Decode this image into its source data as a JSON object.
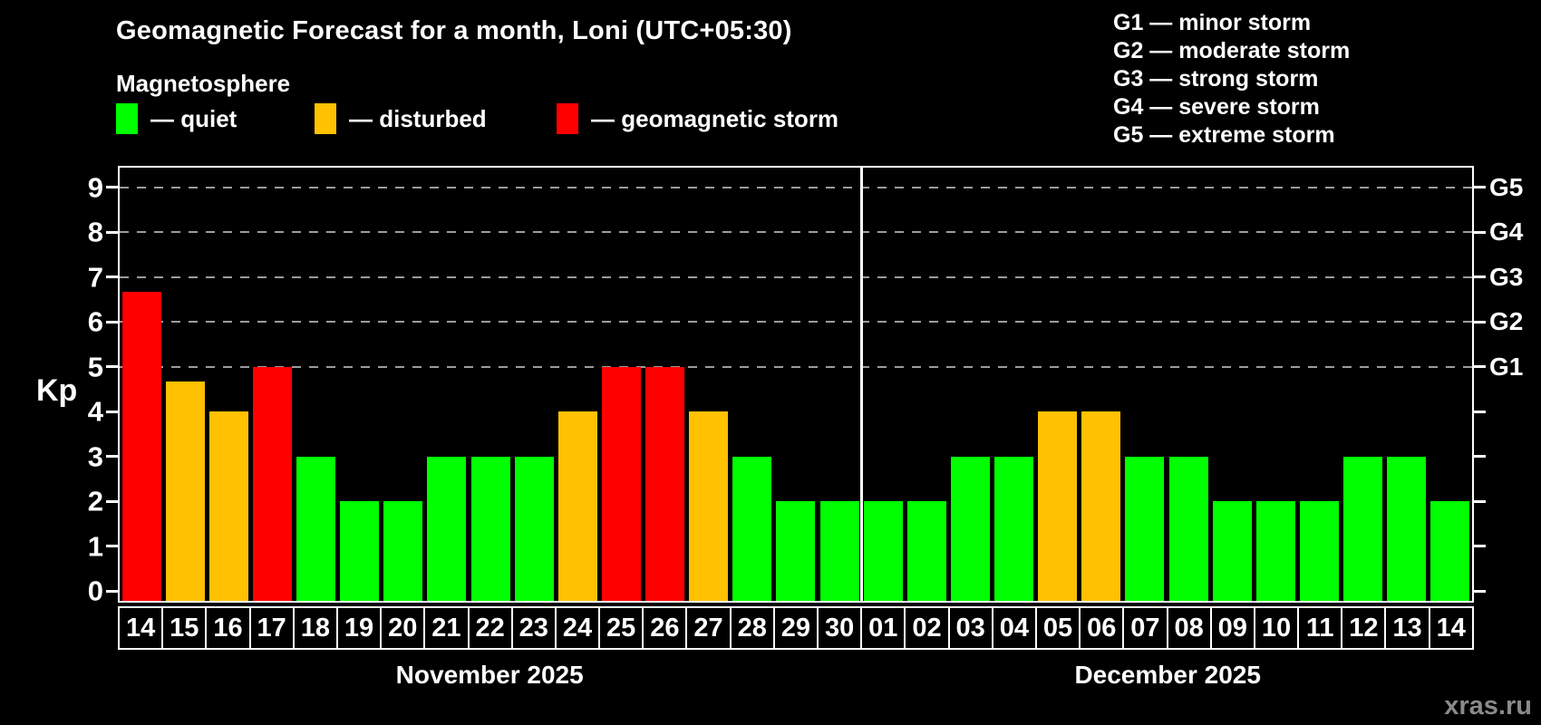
{
  "chart_data": {
    "type": "bar",
    "title": "Geomagnetic Forecast for a month, Loni (UTC+05:30)",
    "legend_title": "Magnetosphere",
    "legend": [
      {
        "status": "quiet",
        "label": "— quiet",
        "color": "#00ff00"
      },
      {
        "status": "disturbed",
        "label": "— disturbed",
        "color": "#ffc100"
      },
      {
        "status": "storm",
        "label": "— geomagnetic storm",
        "color": "#ff0000"
      }
    ],
    "g_legend": [
      "G1 — minor storm",
      "G2 — moderate storm",
      "G3 — strong storm",
      "G4 — severe storm",
      "G5 — extreme storm"
    ],
    "ylabel": "Kp",
    "ylim": [
      0,
      9.7
    ],
    "yticks": [
      0,
      1,
      2,
      3,
      4,
      5,
      6,
      7,
      8,
      9
    ],
    "grid": {
      "levels": [
        5,
        6,
        7,
        8,
        9
      ],
      "style": "dashed"
    },
    "right_axis": [
      {
        "label": "G1",
        "kp": 5
      },
      {
        "label": "G2",
        "kp": 6
      },
      {
        "label": "G3",
        "kp": 7
      },
      {
        "label": "G4",
        "kp": 8
      },
      {
        "label": "G5",
        "kp": 9
      }
    ],
    "months": [
      {
        "label": "November 2025",
        "days": 17
      },
      {
        "label": "December 2025",
        "days": 14
      }
    ],
    "bars": [
      {
        "day": "14",
        "kp": 6.67,
        "status": "storm"
      },
      {
        "day": "15",
        "kp": 4.67,
        "status": "disturbed"
      },
      {
        "day": "16",
        "kp": 4,
        "status": "disturbed"
      },
      {
        "day": "17",
        "kp": 5,
        "status": "storm"
      },
      {
        "day": "18",
        "kp": 3,
        "status": "quiet"
      },
      {
        "day": "19",
        "kp": 2,
        "status": "quiet"
      },
      {
        "day": "20",
        "kp": 2,
        "status": "quiet"
      },
      {
        "day": "21",
        "kp": 3,
        "status": "quiet"
      },
      {
        "day": "22",
        "kp": 3,
        "status": "quiet"
      },
      {
        "day": "23",
        "kp": 3,
        "status": "quiet"
      },
      {
        "day": "24",
        "kp": 4,
        "status": "disturbed"
      },
      {
        "day": "25",
        "kp": 5,
        "status": "storm"
      },
      {
        "day": "26",
        "kp": 5,
        "status": "storm"
      },
      {
        "day": "27",
        "kp": 4,
        "status": "disturbed"
      },
      {
        "day": "28",
        "kp": 3,
        "status": "quiet"
      },
      {
        "day": "29",
        "kp": 2,
        "status": "quiet"
      },
      {
        "day": "30",
        "kp": 2,
        "status": "quiet"
      },
      {
        "day": "01",
        "kp": 2,
        "status": "quiet"
      },
      {
        "day": "02",
        "kp": 2,
        "status": "quiet"
      },
      {
        "day": "03",
        "kp": 3,
        "status": "quiet"
      },
      {
        "day": "04",
        "kp": 3,
        "status": "quiet"
      },
      {
        "day": "05",
        "kp": 4,
        "status": "disturbed"
      },
      {
        "day": "06",
        "kp": 4,
        "status": "disturbed"
      },
      {
        "day": "07",
        "kp": 3,
        "status": "quiet"
      },
      {
        "day": "08",
        "kp": 3,
        "status": "quiet"
      },
      {
        "day": "09",
        "kp": 2,
        "status": "quiet"
      },
      {
        "day": "10",
        "kp": 2,
        "status": "quiet"
      },
      {
        "day": "11",
        "kp": 2,
        "status": "quiet"
      },
      {
        "day": "12",
        "kp": 3,
        "status": "quiet"
      },
      {
        "day": "13",
        "kp": 3,
        "status": "quiet"
      },
      {
        "day": "14",
        "kp": 2,
        "status": "quiet"
      }
    ],
    "watermark": "xras.ru"
  }
}
